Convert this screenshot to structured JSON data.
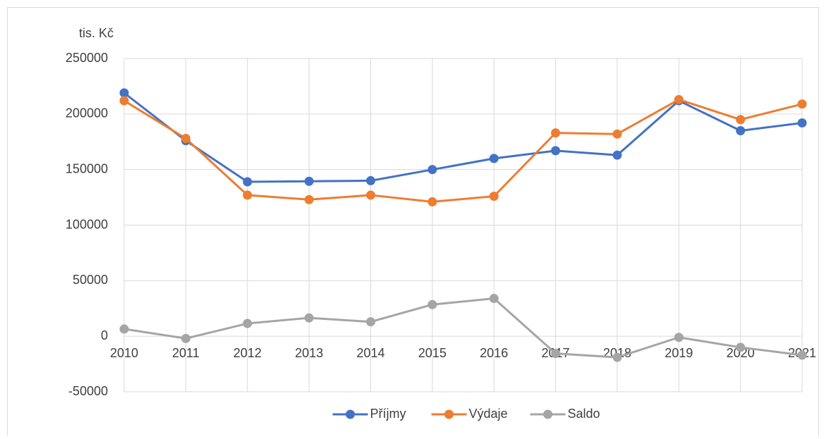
{
  "chart_data": {
    "type": "line",
    "y_unit_label": "tis. Kč",
    "categories": [
      "2010",
      "2011",
      "2012",
      "2013",
      "2014",
      "2015",
      "2016",
      "2017",
      "2018",
      "2019",
      "2020",
      "2021"
    ],
    "series": [
      {
        "name": "Příjmy",
        "color": "#4472c4",
        "values": [
          219000,
          176000,
          139000,
          139500,
          140000,
          150000,
          160000,
          167000,
          163000,
          212000,
          185000,
          192000
        ]
      },
      {
        "name": "Výdaje",
        "color": "#ed7d31",
        "values": [
          212000,
          178000,
          127000,
          123000,
          127000,
          121000,
          126000,
          183000,
          182000,
          213000,
          195000,
          209000
        ]
      },
      {
        "name": "Saldo",
        "color": "#a5a5a5",
        "values": [
          6500,
          -2000,
          11500,
          16500,
          13000,
          28500,
          34000,
          -15500,
          -19000,
          -1000,
          -10000,
          -17000
        ]
      }
    ],
    "ylim": [
      -50000,
      250000
    ],
    "yticks": [
      -50000,
      0,
      50000,
      100000,
      150000,
      200000,
      250000
    ],
    "grid": true,
    "legend": "bottom"
  }
}
